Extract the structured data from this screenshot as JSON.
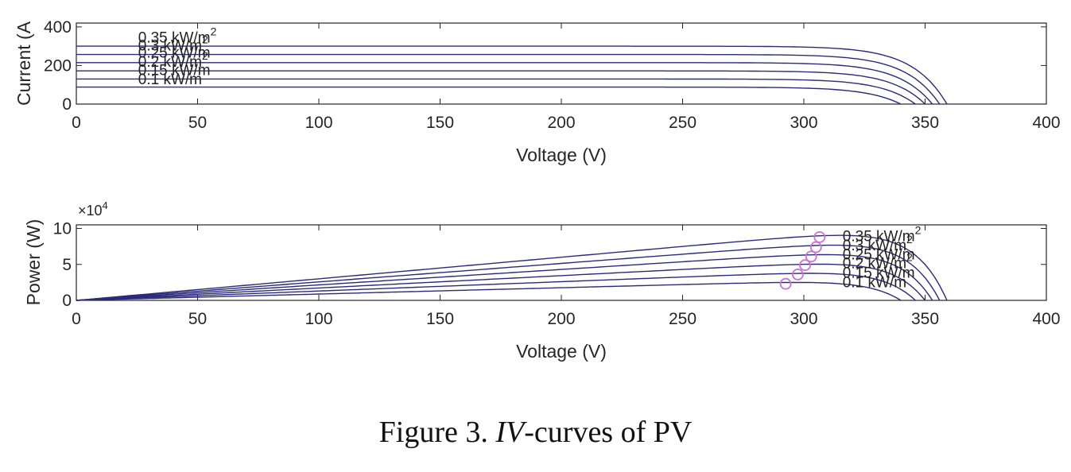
{
  "caption": {
    "prefix": "Figure 3. ",
    "italic": "IV",
    "suffix": "-curves of PV"
  },
  "chart_data": [
    {
      "type": "line",
      "title": "",
      "xlabel": "Voltage (V)",
      "ylabel": "Current (A",
      "xlim": [
        0,
        400
      ],
      "ylim": [
        0,
        420
      ],
      "xticks": [
        0,
        50,
        100,
        150,
        200,
        250,
        300,
        350,
        400
      ],
      "yticks": [
        0,
        200,
        400
      ],
      "grid": false,
      "line_color": "#2b2b7a",
      "series": [
        {
          "name": "0.1 kW/m",
          "isc": 88,
          "voc": 340
        },
        {
          "name": "0.15 kW/m",
          "isc": 130,
          "voc": 346
        },
        {
          "name": "0.2 kW/m",
          "isc": 172,
          "voc": 350
        },
        {
          "name": "0.25 kW/m",
          "isc": 215,
          "voc": 353
        },
        {
          "name": "0.3 kW/m",
          "isc": 257,
          "voc": 356
        },
        {
          "name": "0.35 kW/m",
          "isc": 300,
          "voc": 359
        }
      ],
      "labels": [
        {
          "text": "0.35 kW/m",
          "sup": "2",
          "x": 25.5,
          "y": 320
        },
        {
          "text": "0.3 kW/m",
          "sup": "2",
          "x": 25.5,
          "y": 277
        },
        {
          "text": "0.25 kW/m",
          "sup": "",
          "x": 25.5,
          "y": 240
        },
        {
          "text": "0.2 kW/m",
          "sup": "2",
          "x": 25.5,
          "y": 193
        },
        {
          "text": "0.15 kW/m",
          "sup": "",
          "x": 25.5,
          "y": 150
        },
        {
          "text": "0.1 kW/m",
          "sup": "",
          "x": 25.5,
          "y": 103
        }
      ]
    },
    {
      "type": "line",
      "title": "",
      "xlabel": "Voltage (V)",
      "ylabel": "Power (W)",
      "y_exponent": {
        "base": "×10",
        "power": "4"
      },
      "xlim": [
        0,
        400
      ],
      "ylim": [
        0,
        10.5
      ],
      "xticks": [
        0,
        50,
        100,
        150,
        200,
        250,
        300,
        350,
        400
      ],
      "yticks": [
        0,
        5,
        10
      ],
      "grid": false,
      "line_color": "#2b2b7a",
      "marker_color": "#c774d6",
      "max_power_points": [
        {
          "v": 292.5,
          "p": 2.3
        },
        {
          "v": 297.5,
          "p": 3.6
        },
        {
          "v": 300.5,
          "p": 4.9
        },
        {
          "v": 303.0,
          "p": 6.1
        },
        {
          "v": 305.0,
          "p": 7.4
        },
        {
          "v": 306.5,
          "p": 8.8
        }
      ],
      "labels": [
        {
          "text": "0.35 kW/m",
          "sup": "2",
          "x": 316,
          "y": 8.25
        },
        {
          "text": "0.3 kW/m",
          "sup": "2",
          "x": 316,
          "y": 6.95
        },
        {
          "text": "0.25 kW/m",
          "sup": "",
          "x": 316,
          "y": 5.7
        },
        {
          "text": "0.2 kW/m",
          "sup": "2",
          "x": 316,
          "y": 4.45
        },
        {
          "text": "0.15 kW/m",
          "sup": "",
          "x": 316,
          "y": 3.15
        },
        {
          "text": "0.1 kW/m",
          "sup": "",
          "x": 316,
          "y": 1.85
        }
      ]
    }
  ]
}
